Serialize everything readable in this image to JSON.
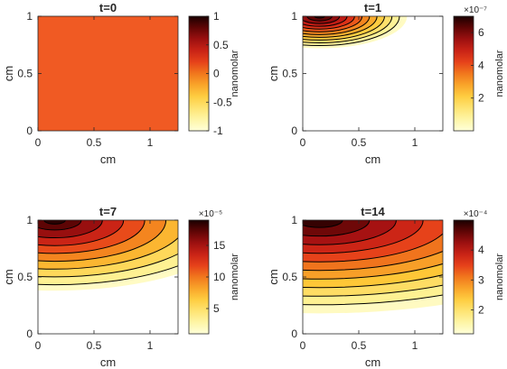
{
  "figure": {
    "palette": {
      "background": "#ffffff",
      "axis": "#262626",
      "contour_line": "#000000",
      "colormap_low": "#ffffd9",
      "colormap_high": "#1a0000",
      "uniform_fill": "#f05a23"
    }
  },
  "chart_data": [
    {
      "type": "heatmap",
      "title": "t=0",
      "xlabel": "cm",
      "ylabel": "cm",
      "xlim": [
        0,
        1.25
      ],
      "ylim": [
        0,
        1
      ],
      "xticks": [
        "0",
        "0.5",
        "1"
      ],
      "yticks": [
        "0",
        "0.5",
        "1"
      ],
      "colorbar": {
        "label": "nanomolar",
        "range": [
          -1,
          1
        ],
        "ticks": [
          "1",
          "0.5",
          "0",
          "-0.5",
          "-1"
        ],
        "exponent": ""
      },
      "field": {
        "uniform_value": 0,
        "peak": [
          0.15,
          1.0
        ]
      },
      "contour_levels": []
    },
    {
      "type": "heatmap",
      "title": "t=1",
      "xlabel": "cm",
      "ylabel": "cm",
      "xlim": [
        0,
        1.25
      ],
      "ylim": [
        0,
        1
      ],
      "xticks": [
        "0",
        "0.5",
        "1"
      ],
      "yticks": [
        "0",
        "0.5",
        "1"
      ],
      "colorbar": {
        "label": "nanomolar",
        "range": [
          0,
          7
        ],
        "ticks": [
          "6",
          "4",
          "2"
        ],
        "exponent": "×10⁻⁷"
      },
      "field": {
        "peak": [
          0.15,
          1.0
        ],
        "peak_value": 7,
        "extent": [
          0.78,
          0.28
        ]
      },
      "contour_levels": [
        0.6,
        1.2,
        1.8,
        2.4,
        3.0,
        3.6,
        4.2,
        4.8,
        5.4,
        6.0,
        6.6
      ]
    },
    {
      "type": "heatmap",
      "title": "t=7",
      "xlabel": "cm",
      "ylabel": "cm",
      "xlim": [
        0,
        1.25
      ],
      "ylim": [
        0,
        1
      ],
      "xticks": [
        "0",
        "0.5",
        "1"
      ],
      "yticks": [
        "0",
        "0.5",
        "1"
      ],
      "colorbar": {
        "label": "nanomolar",
        "range": [
          1,
          19
        ],
        "ticks": [
          "15",
          "10",
          "5"
        ],
        "exponent": "×10⁻⁵"
      },
      "field": {
        "peak": [
          0.15,
          1.0
        ],
        "peak_value": 19,
        "extent": [
          1.7,
          0.62
        ]
      },
      "contour_levels": [
        2.5,
        4.5,
        6.5,
        8.5,
        10.5,
        12.5,
        14.5,
        16.5,
        18.0
      ]
    },
    {
      "type": "heatmap",
      "title": "t=14",
      "xlabel": "cm",
      "ylabel": "cm",
      "xlim": [
        0,
        1.25
      ],
      "ylim": [
        0,
        1
      ],
      "xticks": [
        "0",
        "0.5",
        "1"
      ],
      "yticks": [
        "0",
        "0.5",
        "1"
      ],
      "colorbar": {
        "label": "nanomolar",
        "range": [
          1.2,
          5
        ],
        "ticks": [
          "4",
          "3",
          "2"
        ],
        "exponent": "×10⁻⁴"
      },
      "field": {
        "peak": [
          0.15,
          1.0
        ],
        "peak_value": 5,
        "extent": [
          2.6,
          0.82
        ]
      },
      "contour_levels": [
        1.55,
        1.9,
        2.25,
        2.6,
        2.95,
        3.3,
        3.65,
        4.0,
        4.35,
        4.7
      ]
    }
  ]
}
